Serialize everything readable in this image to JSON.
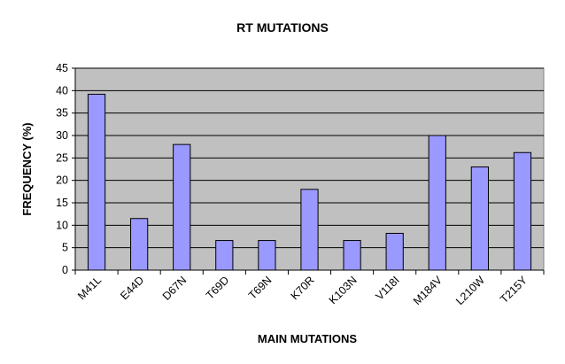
{
  "chart_data": {
    "type": "bar",
    "title": "RT MUTATIONS",
    "xlabel": "MAIN MUTATIONS",
    "ylabel": "FREQUENCY (%)",
    "categories": [
      "M41L",
      "E44D",
      "D67N",
      "T69D",
      "T69N",
      "K70R",
      "K103N",
      "V118I",
      "M184V",
      "L210W",
      "T215Y"
    ],
    "values": [
      39.2,
      11.5,
      28,
      6.6,
      6.6,
      18,
      6.6,
      8.2,
      30,
      23,
      26.2
    ],
    "ylim": [
      0,
      45
    ],
    "yticks": [
      "0",
      "5",
      "10",
      "15",
      "20",
      "25",
      "30",
      "35",
      "40",
      "45"
    ],
    "grid": true,
    "legend": "none",
    "colors": {
      "bar_fill": "#9999ff",
      "plot_background": "#c0c0c0",
      "gridline": "#000000",
      "axis": "#000000"
    }
  }
}
